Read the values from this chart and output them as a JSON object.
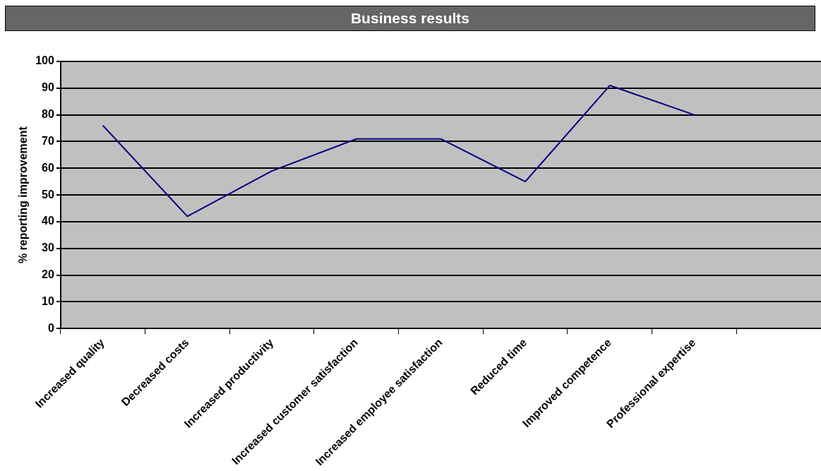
{
  "chart_data": {
    "type": "line",
    "title": "Business results",
    "ylabel": "% reporting improvement",
    "categories": [
      "Increased quality",
      "Decreased costs",
      "Increased productivity",
      "Increased customer satisfaction",
      "Increased employee satisfaction",
      "Reduced time",
      "Improved competence",
      "Professional expertise",
      null
    ],
    "series": [
      {
        "color": "#000080",
        "values": [
          76,
          42,
          59,
          71,
          71,
          55,
          91,
          80,
          null
        ]
      }
    ],
    "ylim": [
      0,
      100
    ],
    "yticks": [
      0,
      10,
      20,
      30,
      40,
      50,
      60,
      70,
      80,
      90,
      100
    ],
    "grid": "y",
    "legend": false,
    "marker": "none",
    "line_style": "solid"
  }
}
